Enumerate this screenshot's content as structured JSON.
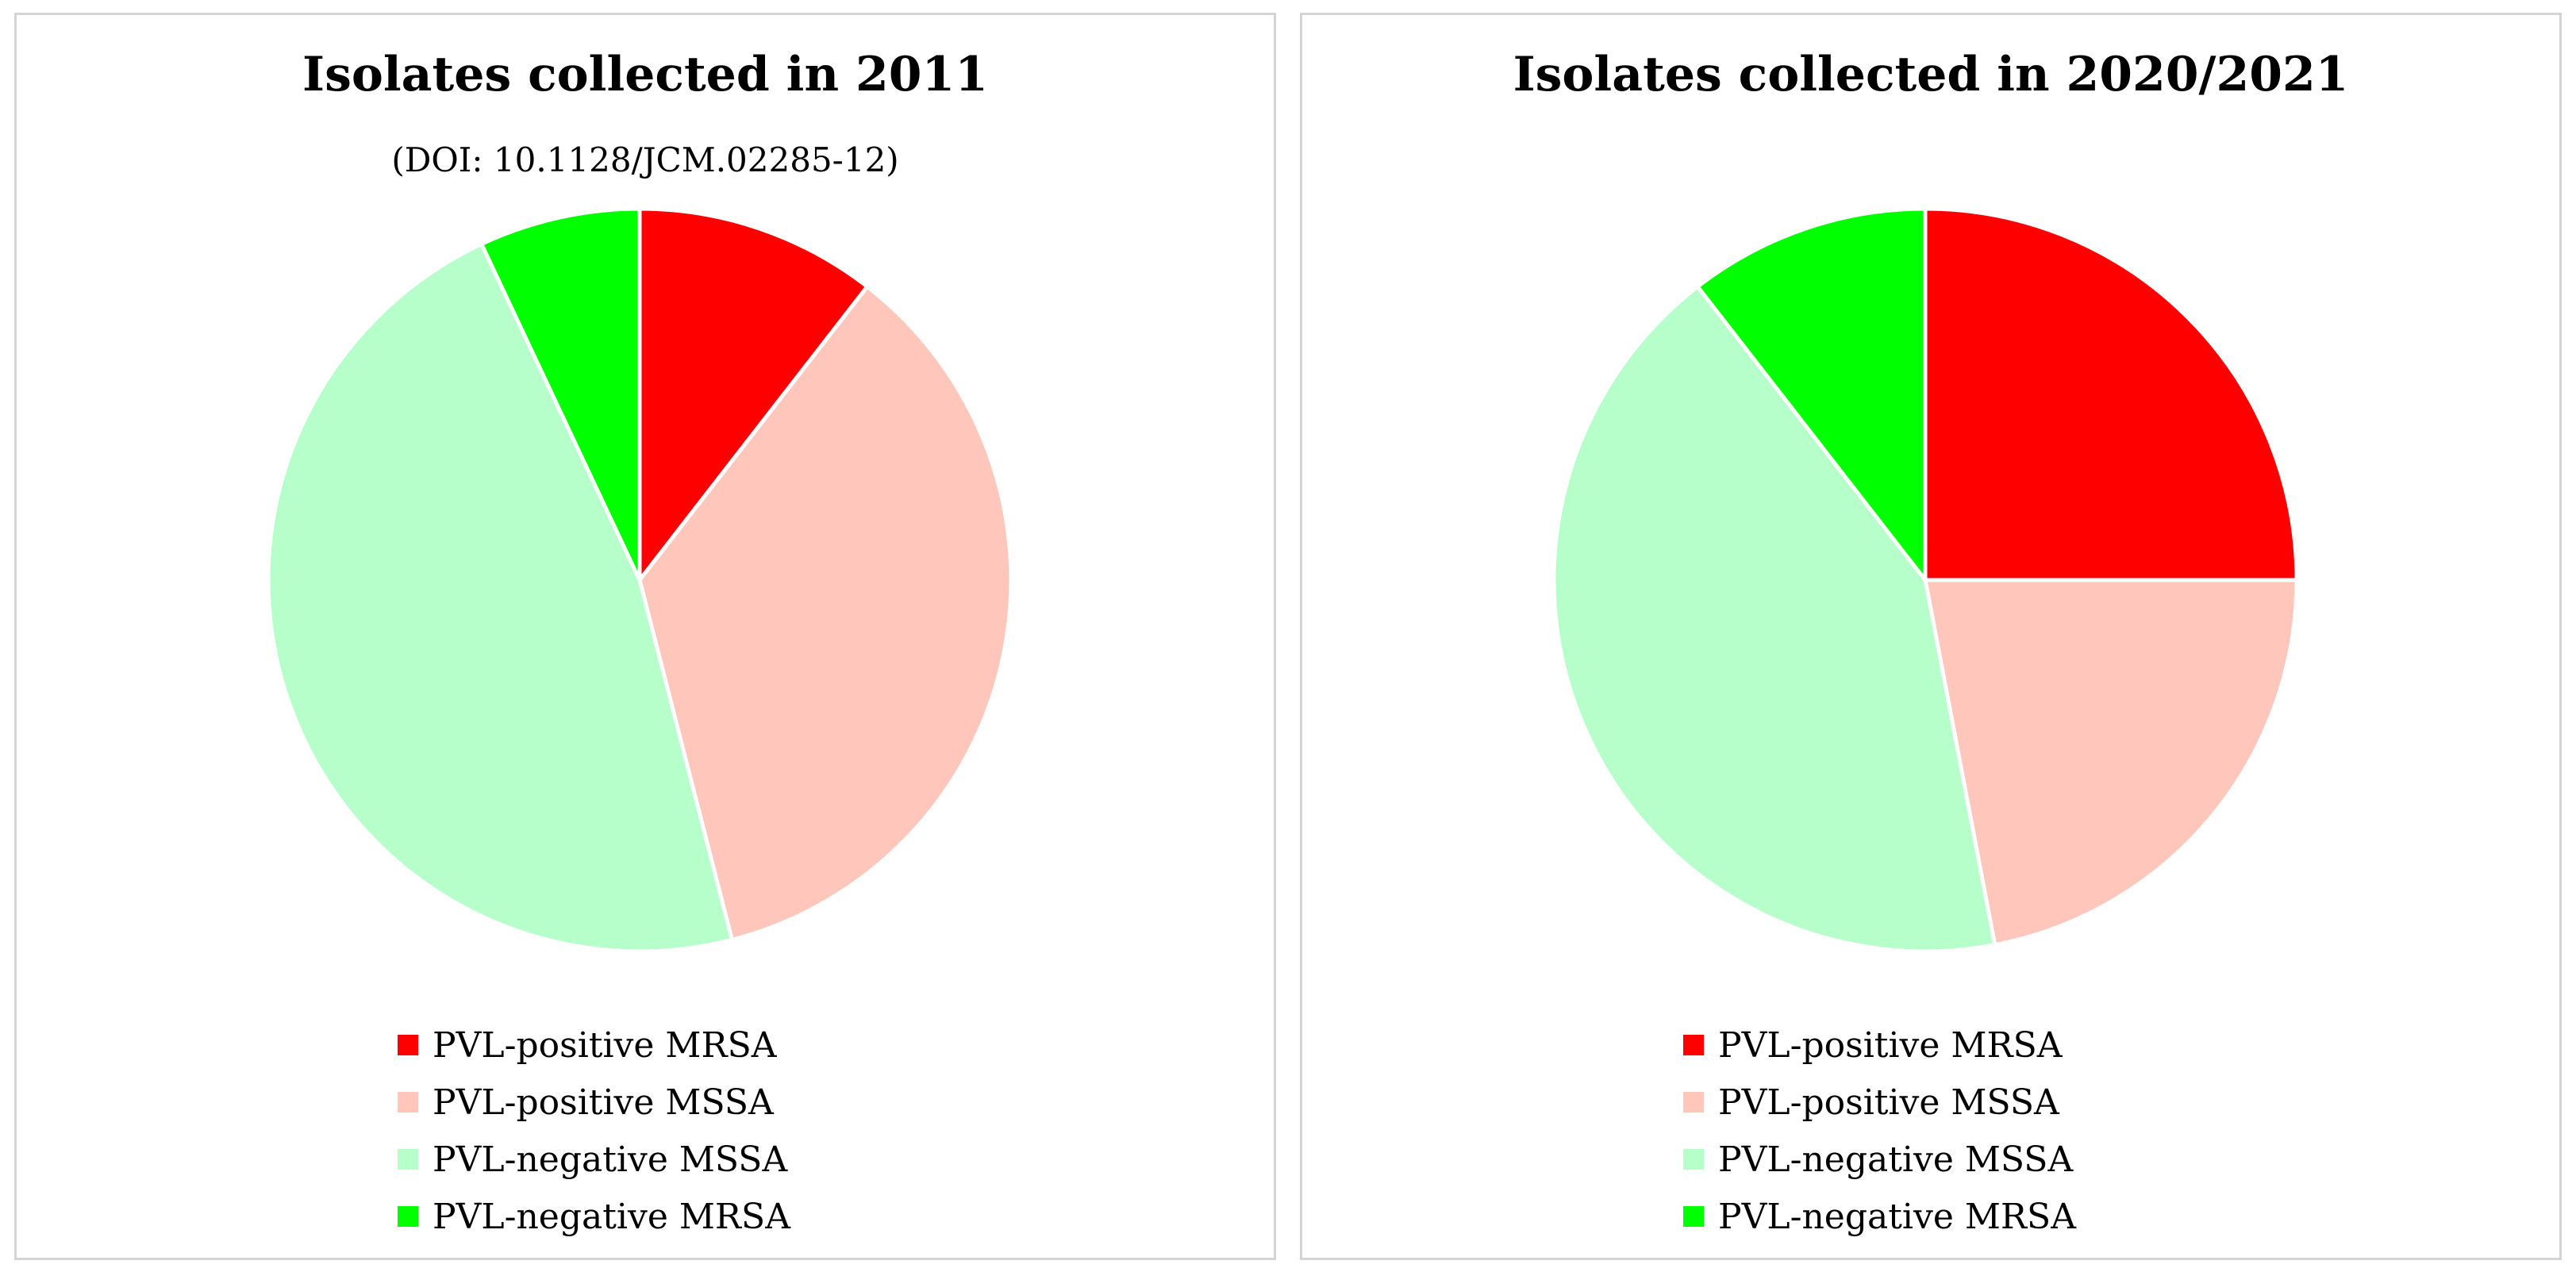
{
  "chart_data": [
    {
      "type": "pie",
      "title": "Isolates collected in 2011",
      "subtitle": "(DOI: 10.1128/JCM.02285-12)",
      "categories": [
        "PVL-positive MRSA",
        "PVL-positive MSSA",
        "PVL-negative MSSA",
        "PVL-negative MRSA"
      ],
      "values": [
        10.5,
        35.5,
        47.0,
        7.0
      ],
      "colors": [
        "#ff0000",
        "#ffc7bb",
        "#b6ffcb",
        "#00ff00"
      ],
      "legend_position": "bottom"
    },
    {
      "type": "pie",
      "title": "Isolates collected in 2020/2021",
      "categories": [
        "PVL-positive MRSA",
        "PVL-positive MSSA",
        "PVL-negative MSSA",
        "PVL-negative MRSA"
      ],
      "values": [
        25.0,
        22.0,
        42.5,
        10.5
      ],
      "colors": [
        "#ff0000",
        "#ffc7bb",
        "#b6ffcb",
        "#00ff00"
      ],
      "legend_position": "bottom"
    }
  ]
}
